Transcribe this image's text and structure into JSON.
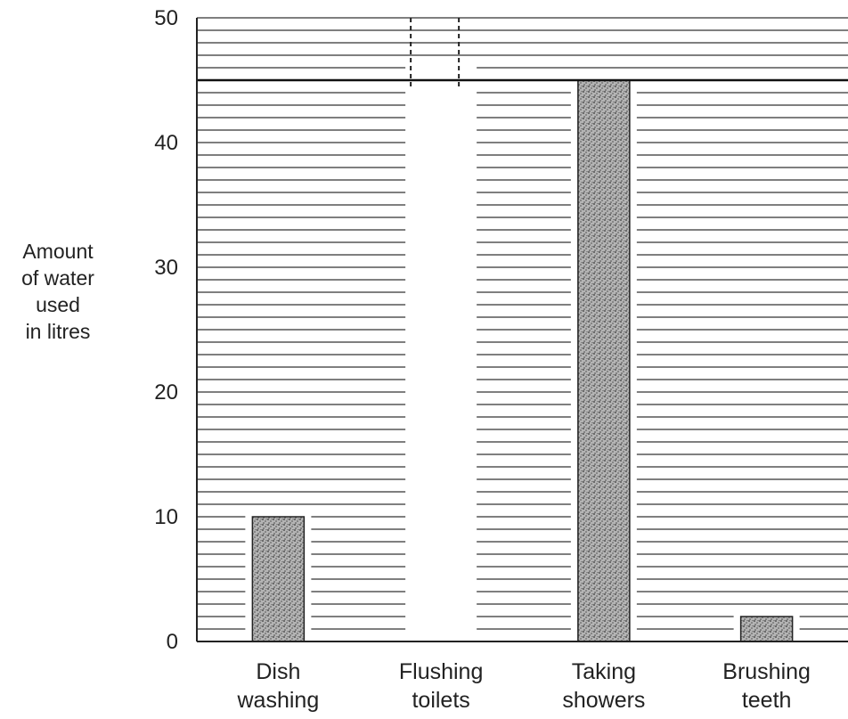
{
  "chart_data": {
    "type": "bar",
    "title": "",
    "xlabel": "",
    "ylabel_lines": [
      "Amount",
      "of water",
      "used",
      "in litres"
    ],
    "categories": [
      [
        "Dish",
        "washing"
      ],
      [
        "Flushing",
        "toilets"
      ],
      [
        "Taking",
        "showers"
      ],
      [
        "Brushing",
        "teeth"
      ]
    ],
    "values": [
      10,
      null,
      45,
      2
    ],
    "ylim": [
      0,
      50
    ],
    "yticks": [
      0,
      10,
      20,
      30,
      40,
      50
    ],
    "grid": true,
    "bar_fill": "#9a9a9a"
  }
}
